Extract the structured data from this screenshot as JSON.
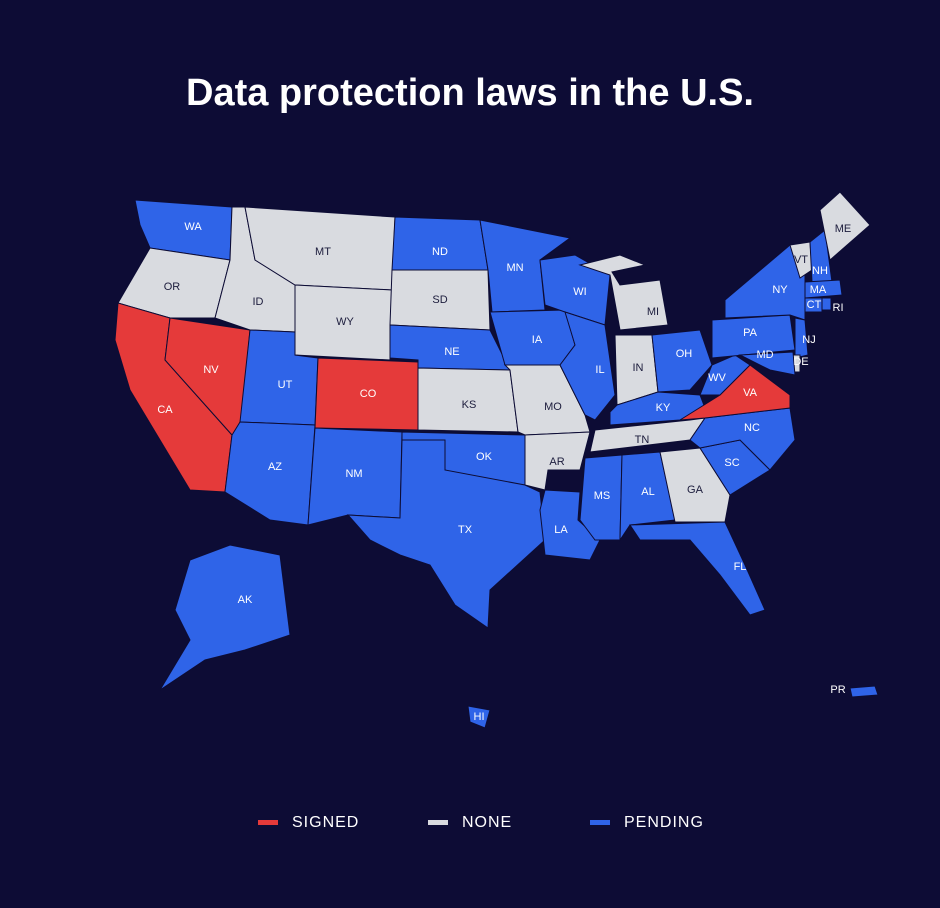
{
  "title": "Data protection laws in the U.S.",
  "legend": [
    {
      "label": "SIGNED",
      "color": "#e53a3a",
      "label_color": "#ffffff"
    },
    {
      "label": "NONE",
      "color": "#d9dbe0",
      "label_color": "#1c1c3c"
    },
    {
      "label": "PENDING",
      "color": "#2f64e8",
      "label_color": "#ffffff"
    }
  ],
  "states": [
    {
      "label": "WA",
      "status": "PENDING"
    },
    {
      "label": "OR",
      "status": "NONE"
    },
    {
      "label": "CA",
      "status": "SIGNED"
    },
    {
      "label": "NV",
      "status": "SIGNED"
    },
    {
      "label": "ID",
      "status": "NONE"
    },
    {
      "label": "MT",
      "status": "NONE"
    },
    {
      "label": "WY",
      "status": "NONE"
    },
    {
      "label": "UT",
      "status": "PENDING"
    },
    {
      "label": "CO",
      "status": "SIGNED"
    },
    {
      "label": "AZ",
      "status": "PENDING"
    },
    {
      "label": "NM",
      "status": "PENDING"
    },
    {
      "label": "ND",
      "status": "PENDING"
    },
    {
      "label": "SD",
      "status": "NONE"
    },
    {
      "label": "NE",
      "status": "PENDING"
    },
    {
      "label": "KS",
      "status": "NONE"
    },
    {
      "label": "OK",
      "status": "PENDING"
    },
    {
      "label": "TX",
      "status": "PENDING"
    },
    {
      "label": "MN",
      "status": "PENDING"
    },
    {
      "label": "IA",
      "status": "PENDING"
    },
    {
      "label": "MO",
      "status": "NONE"
    },
    {
      "label": "AR",
      "status": "NONE"
    },
    {
      "label": "LA",
      "status": "PENDING"
    },
    {
      "label": "WI",
      "status": "PENDING"
    },
    {
      "label": "IL",
      "status": "PENDING"
    },
    {
      "label": "MI",
      "status": "NONE"
    },
    {
      "label": "IN",
      "status": "NONE"
    },
    {
      "label": "OH",
      "status": "PENDING"
    },
    {
      "label": "KY",
      "status": "PENDING"
    },
    {
      "label": "TN",
      "status": "NONE"
    },
    {
      "label": "MS",
      "status": "PENDING"
    },
    {
      "label": "AL",
      "status": "PENDING"
    },
    {
      "label": "GA",
      "status": "NONE"
    },
    {
      "label": "FL",
      "status": "PENDING"
    },
    {
      "label": "SC",
      "status": "PENDING"
    },
    {
      "label": "NC",
      "status": "PENDING"
    },
    {
      "label": "VA",
      "status": "SIGNED"
    },
    {
      "label": "WV",
      "status": "PENDING"
    },
    {
      "label": "PA",
      "status": "PENDING"
    },
    {
      "label": "NY",
      "status": "PENDING"
    },
    {
      "label": "VT",
      "status": "NONE"
    },
    {
      "label": "NH",
      "status": "PENDING"
    },
    {
      "label": "ME",
      "status": "NONE"
    },
    {
      "label": "MA",
      "status": "PENDING"
    },
    {
      "label": "CT",
      "status": "PENDING"
    },
    {
      "label": "RI",
      "status": "PENDING"
    },
    {
      "label": "NJ",
      "status": "PENDING"
    },
    {
      "label": "DE",
      "status": "NONE"
    },
    {
      "label": "MD",
      "status": "PENDING"
    },
    {
      "label": "AK",
      "status": "PENDING"
    },
    {
      "label": "HI",
      "status": "PENDING"
    },
    {
      "label": "PR",
      "status": "PENDING"
    }
  ]
}
